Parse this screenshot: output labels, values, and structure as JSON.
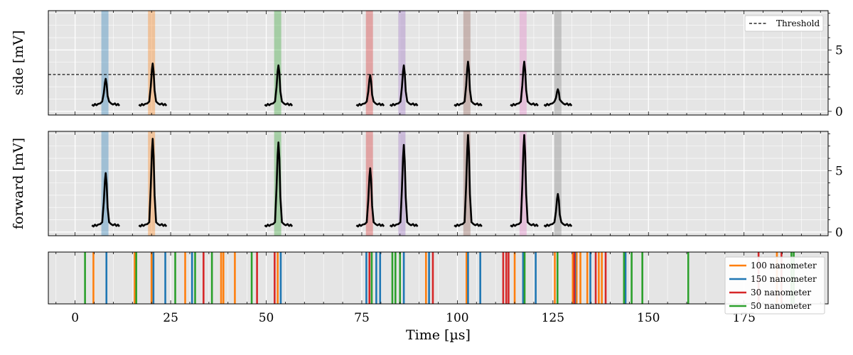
{
  "chart_data": [
    {
      "type": "line",
      "ylabel": "side [mV]",
      "ylim": [
        -0.3,
        8.2
      ],
      "yticks": [
        0,
        5
      ],
      "xlim": [
        -7,
        197
      ],
      "threshold": 3.0,
      "legend": {
        "placement": "top-right",
        "entries": [
          "Threshold"
        ]
      },
      "spans": [
        {
          "x": 7.8,
          "color": "#1f77b4"
        },
        {
          "x": 20.0,
          "color": "#ff7f0e"
        },
        {
          "x": 53.0,
          "color": "#2ca02c"
        },
        {
          "x": 77.0,
          "color": "#d62728"
        },
        {
          "x": 85.5,
          "color": "#9467bd"
        },
        {
          "x": 102.5,
          "color": "#8c564b"
        },
        {
          "x": 117.2,
          "color": "#e377c2"
        },
        {
          "x": 126.3,
          "color": "#7f7f7f"
        }
      ],
      "peaks": [
        {
          "x": 8.0,
          "peak": 2.65
        },
        {
          "x": 20.3,
          "peak": 3.9
        },
        {
          "x": 53.2,
          "peak": 3.75
        },
        {
          "x": 77.2,
          "peak": 2.95
        },
        {
          "x": 86.0,
          "peak": 3.75
        },
        {
          "x": 102.8,
          "peak": 4.05
        },
        {
          "x": 117.5,
          "peak": 4.05
        },
        {
          "x": 126.3,
          "peak": 1.8
        }
      ],
      "baseline": 0.5
    },
    {
      "type": "line",
      "ylabel": "forward [mV]",
      "ylim": [
        -0.3,
        8.2
      ],
      "yticks": [
        0,
        5
      ],
      "xlim": [
        -7,
        197
      ],
      "spans": [
        {
          "x": 7.8,
          "color": "#1f77b4"
        },
        {
          "x": 20.0,
          "color": "#ff7f0e"
        },
        {
          "x": 53.0,
          "color": "#2ca02c"
        },
        {
          "x": 77.0,
          "color": "#d62728"
        },
        {
          "x": 85.5,
          "color": "#9467bd"
        },
        {
          "x": 102.5,
          "color": "#8c564b"
        },
        {
          "x": 117.2,
          "color": "#e377c2"
        },
        {
          "x": 126.3,
          "color": "#7f7f7f"
        }
      ],
      "peaks": [
        {
          "x": 8.0,
          "peak": 4.8
        },
        {
          "x": 20.3,
          "peak": 7.6
        },
        {
          "x": 53.2,
          "peak": 7.3
        },
        {
          "x": 77.2,
          "peak": 5.2
        },
        {
          "x": 86.0,
          "peak": 7.1
        },
        {
          "x": 102.8,
          "peak": 7.9
        },
        {
          "x": 117.5,
          "peak": 7.9
        },
        {
          "x": 126.3,
          "peak": 3.1
        }
      ],
      "baseline": 0.5
    },
    {
      "type": "event",
      "xlabel": "Time [µs]",
      "xlim": [
        -7,
        197
      ],
      "xticks": [
        0,
        25,
        50,
        75,
        100,
        125,
        150,
        175
      ],
      "legend": {
        "placement": "bottom-right"
      },
      "series": [
        {
          "name": "100 nanometer",
          "color": "#ff7f0e",
          "x": [
            4.8,
            15.6,
            20.0,
            28.8,
            38.2,
            38.8,
            41.8,
            53.0,
            91.8,
            102.4,
            115.0,
            125.5,
            130.2,
            131.2,
            132.2,
            134.0,
            137.0,
            137.8,
            183.6
          ]
        },
        {
          "name": "150 nanometer",
          "color": "#1f77b4",
          "x": [
            8.2,
            20.5,
            23.6,
            30.6,
            53.8,
            76.2,
            78.8,
            79.8,
            86.0,
            92.6,
            102.8,
            106.0,
            117.2,
            120.5,
            130.8,
            134.8,
            144.0
          ]
        },
        {
          "name": "30 nanometer",
          "color": "#d62728",
          "x": [
            33.6,
            47.6,
            52.2,
            77.0,
            93.6,
            112.0,
            112.8,
            113.4,
            130.6,
            136.2,
            138.8,
            178.8,
            184.8
          ]
        },
        {
          "name": "50 nanometer",
          "color": "#2ca02c",
          "x": [
            2.6,
            16.0,
            26.2,
            31.4,
            35.8,
            46.2,
            77.6,
            83.0,
            83.8,
            85.0,
            117.6,
            126.2,
            143.6,
            145.6,
            148.4,
            160.4,
            187.4,
            188.0
          ]
        }
      ]
    }
  ]
}
